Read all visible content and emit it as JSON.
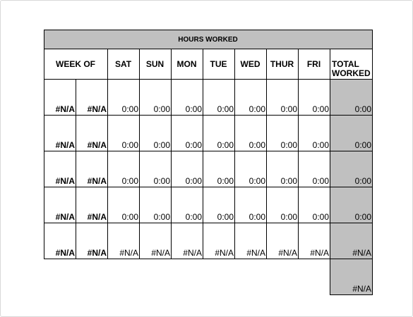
{
  "sheet": {
    "title": "HOURS WORKED",
    "headers": {
      "week_of": "WEEK OF",
      "days": [
        "SAT",
        "SUN",
        "MON",
        "TUE",
        "WED",
        "THUR",
        "FRI"
      ],
      "total_line1": "TOTAL",
      "total_line2": "WORKED"
    },
    "rows": [
      {
        "week_start": "#N/A",
        "week_end": "#N/A",
        "days": [
          "0:00",
          "0:00",
          "0:00",
          "0:00",
          "0:00",
          "0:00",
          "0:00"
        ],
        "total": "0:00"
      },
      {
        "week_start": "#N/A",
        "week_end": "#N/A",
        "days": [
          "0:00",
          "0:00",
          "0:00",
          "0:00",
          "0:00",
          "0:00",
          "0:00"
        ],
        "total": "0:00"
      },
      {
        "week_start": "#N/A",
        "week_end": "#N/A",
        "days": [
          "0:00",
          "0:00",
          "0:00",
          "0:00",
          "0:00",
          "0:00",
          "0:00"
        ],
        "total": "0:00"
      },
      {
        "week_start": "#N/A",
        "week_end": "#N/A",
        "days": [
          "0:00",
          "0:00",
          "0:00",
          "0:00",
          "0:00",
          "0:00",
          "0:00"
        ],
        "total": "0:00"
      },
      {
        "week_start": "#N/A",
        "week_end": "#N/A",
        "days": [
          "#N/A",
          "#N/A",
          "#N/A",
          "#N/A",
          "#N/A",
          "#N/A",
          "#N/A"
        ],
        "total": "#N/A"
      }
    ],
    "grand_total": "#N/A"
  },
  "colors": {
    "header_fill": "#c0c0c0",
    "border": "#000000"
  }
}
